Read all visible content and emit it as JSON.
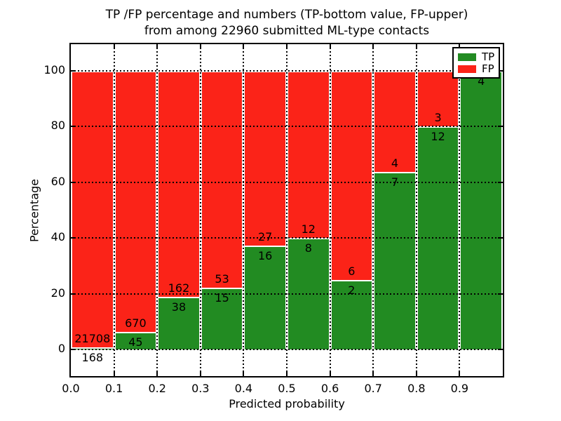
{
  "figure": {
    "title_line1": "TP /FP percentage and numbers (TP-bottom value, FP-upper)",
    "title_line2": "from among 22960 submitted ML-type contacts"
  },
  "chart_data": {
    "type": "bar",
    "stacked": true,
    "normalized_to_percent": true,
    "title": "TP /FP percentage and numbers (TP-bottom value, FP-upper) from among 22960 submitted ML-type contacts",
    "xlabel": "Predicted probability",
    "ylabel": "Percentage",
    "xlim": [
      0.0,
      1.0
    ],
    "ylim": [
      -10,
      110
    ],
    "grid": "dotted black, both axes",
    "legend_position": "upper right",
    "bin_width": 0.1,
    "x_bin_start": [
      0.0,
      0.1,
      0.2,
      0.3,
      0.4,
      0.5,
      0.6,
      0.7,
      0.8,
      0.9
    ],
    "xticks": [
      "0.0",
      "0.1",
      "0.2",
      "0.3",
      "0.4",
      "0.5",
      "0.6",
      "0.7",
      "0.8",
      "0.9"
    ],
    "yticks": [
      "0",
      "20",
      "40",
      "60",
      "80",
      "100"
    ],
    "series": [
      {
        "name": "TP",
        "color": "#228b22",
        "counts": [
          168,
          45,
          38,
          15,
          16,
          8,
          2,
          7,
          12,
          4
        ]
      },
      {
        "name": "FP",
        "color": "#fb2318",
        "counts": [
          21708,
          670,
          162,
          53,
          27,
          12,
          6,
          4,
          3,
          0
        ]
      }
    ],
    "tp_percent_of_bin": [
      0.77,
      6.29,
      19.0,
      22.06,
      37.21,
      40.0,
      25.0,
      63.64,
      80.0,
      100.0
    ],
    "total_contacts": 22960
  },
  "legend": {
    "items": [
      {
        "label": "TP",
        "color": "#228b22"
      },
      {
        "label": "FP",
        "color": "#fb2318"
      }
    ]
  }
}
